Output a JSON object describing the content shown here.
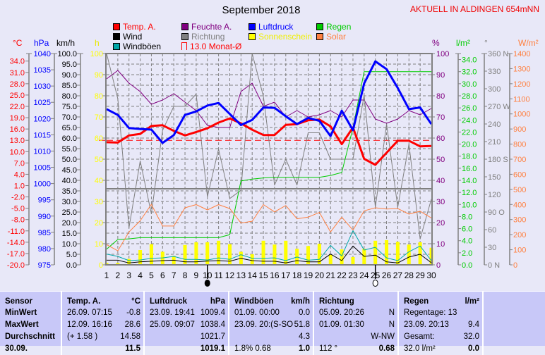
{
  "title": "September 2018",
  "location": "AKTUELL IN ALDINGEN 654mNN",
  "legend": [
    {
      "label": "Temp. A.",
      "color": "#FF0000"
    },
    {
      "label": "Wind",
      "color": "#000000"
    },
    {
      "label": "Windböen",
      "color": "#00A8A8"
    },
    {
      "label": "Feuchte A.",
      "color": "#800080"
    },
    {
      "label": "Richtung",
      "color": "#808080"
    },
    {
      "label": "13.0 Monat-Ø",
      "color": "#FF0000"
    },
    {
      "label": "Luftdruck",
      "color": "#0000FF"
    },
    {
      "label": "Sonnenschein",
      "color": "#FFFF00"
    },
    {
      "label": "Regen",
      "color": "#00CC00"
    },
    {
      "label": "Solar",
      "color": "#FF8040"
    }
  ],
  "units": {
    "temp": "°C",
    "pressure": "hPa",
    "wind": "km/h",
    "sun": "h",
    "humidity": "%",
    "rain": "l/m²",
    "direction": "°",
    "solar": "W/m²"
  },
  "chart_data": {
    "type": "line",
    "title": "September 2018",
    "x": [
      1,
      2,
      3,
      4,
      5,
      6,
      7,
      8,
      9,
      10,
      11,
      12,
      13,
      14,
      15,
      16,
      17,
      18,
      19,
      20,
      21,
      22,
      23,
      24,
      25,
      26,
      27,
      28,
      29,
      30
    ],
    "xlabel": "Tag",
    "grid": true,
    "axes": {
      "temp": {
        "min": -20,
        "max": 36,
        "label_from": -20,
        "label_to": 34,
        "step": 3,
        "decimals": 1,
        "color": "#FF0000"
      },
      "pressure": {
        "min": 975,
        "max": 1040,
        "label_from": 975,
        "label_to": 1040,
        "step": 5,
        "decimals": 0,
        "color": "#0000FF"
      },
      "wind": {
        "min": 0,
        "max": 100,
        "label_from": 0,
        "label_to": 100,
        "step": 5,
        "decimals": 1,
        "color": "#000000"
      },
      "sun": {
        "min": 0,
        "max": 100,
        "label_from": 0,
        "label_to": 100,
        "step": 10,
        "decimals": 0,
        "color": "#FFFF00"
      },
      "humidity": {
        "min": 0,
        "max": 100,
        "label_from": 0,
        "label_to": 100,
        "step": 10,
        "decimals": 0,
        "color": "#800080"
      },
      "rain": {
        "min": 0,
        "max": 35,
        "label_from": 0,
        "label_to": 34,
        "step": 2,
        "decimals": 1,
        "color": "#00CC00"
      },
      "direction": {
        "min": 0,
        "max": 360,
        "label_from": 0,
        "label_to": 360,
        "step": 30,
        "decimals": 0,
        "color": "#808080",
        "compass": {
          "0": "N",
          "90": "O",
          "180": "S",
          "270": "W",
          "360": "N"
        }
      },
      "solar": {
        "min": 0,
        "max": 1400,
        "label_from": 0,
        "label_to": 1400,
        "step": 100,
        "decimals": 0,
        "color": "#FF8040"
      }
    },
    "monthly_avg_temp": 13.0,
    "moon_phases": [
      {
        "day": 10,
        "phase": "new"
      },
      {
        "day": 25,
        "phase": "full"
      }
    ],
    "series": [
      {
        "name": "Temp. A.",
        "axis": "temp",
        "color": "#FF0000",
        "width": 3,
        "values": [
          12.5,
          12.4,
          14.3,
          14.7,
          16.8,
          17.0,
          15.5,
          14.3,
          15.2,
          16.2,
          17.7,
          18.8,
          17.5,
          15.8,
          14.4,
          14.4,
          17.1,
          17.3,
          18.3,
          18.5,
          16.7,
          12.0,
          16.4,
          8.1,
          6.5,
          9.7,
          12.9,
          12.9,
          11.4,
          11.5
        ]
      },
      {
        "name": "Luftdruck",
        "axis": "pressure",
        "color": "#0000FF",
        "width": 3,
        "values": [
          1022.9,
          1021.1,
          1017.1,
          1016.8,
          1016.6,
          1012.5,
          1014.9,
          1021.1,
          1022.2,
          1024.0,
          1024.8,
          1021.4,
          1018.0,
          1019.6,
          1023.4,
          1023.3,
          1020.7,
          1018.3,
          1020.2,
          1019.3,
          1014.6,
          1022.4,
          1016.4,
          1030.8,
          1037.6,
          1035.2,
          1029.4,
          1022.9,
          1023.4,
          1018.3
        ]
      },
      {
        "name": "Feuchte A.",
        "axis": "humidity",
        "color": "#800080",
        "width": 1,
        "values": [
          88,
          92,
          86,
          82,
          76,
          78,
          81,
          77,
          73,
          66,
          65,
          65,
          82,
          86,
          75,
          77,
          70,
          73,
          70,
          71,
          73,
          70,
          78,
          78,
          69,
          67,
          69,
          73,
          71,
          74
        ]
      },
      {
        "name": "Richtung",
        "axis": "direction",
        "color": "#808080",
        "width": 1,
        "values": [
          360,
          283,
          63,
          177,
          87,
          229,
          270,
          270,
          291,
          116,
          197,
          113,
          127,
          360,
          287,
          136,
          180,
          136,
          225,
          225,
          180,
          180,
          180,
          289,
          98,
          240,
          98,
          206,
          44,
          112
        ]
      },
      {
        "name": "Regen",
        "axis": "rain",
        "color": "#00CC00",
        "width": 1,
        "values": [
          2.6,
          4.2,
          4.3,
          4.5,
          4.5,
          4.5,
          4.5,
          4.5,
          4.5,
          4.5,
          4.5,
          5.0,
          13.9,
          14.2,
          14.4,
          14.5,
          14.5,
          14.5,
          14.5,
          14.5,
          14.8,
          15.3,
          22.7,
          32.0,
          32.0,
          32.0,
          32.0,
          32.0,
          32.0,
          32.0
        ]
      },
      {
        "name": "Solar",
        "axis": "solar",
        "color": "#FF8040",
        "width": 1,
        "values": [
          134,
          93,
          218,
          292,
          401,
          257,
          257,
          378,
          399,
          364,
          399,
          373,
          277,
          289,
          399,
          351,
          393,
          305,
          316,
          347,
          218,
          316,
          230,
          358,
          378,
          370,
          373,
          336,
          355,
          311
        ]
      },
      {
        "name": "Windböen",
        "axis": "wind",
        "color": "#00A8A8",
        "width": 1,
        "values": [
          5.1,
          4.0,
          2.0,
          2.3,
          3.1,
          3.3,
          4.0,
          2.6,
          2.6,
          2.3,
          3.3,
          2.6,
          4.8,
          3.1,
          3.1,
          3.3,
          2.0,
          3.7,
          2.2,
          2.6,
          9.2,
          4.2,
          16.2,
          7.0,
          8.3,
          3.3,
          2.0,
          6.2,
          8.9,
          2.0
        ]
      },
      {
        "name": "Wind",
        "axis": "wind",
        "color": "#000000",
        "width": 1,
        "values": [
          2.2,
          2.2,
          0.9,
          1.4,
          1.7,
          2.0,
          2.2,
          1.4,
          1.4,
          1.8,
          2.0,
          1.7,
          3.1,
          2.0,
          1.7,
          1.7,
          0.9,
          2.0,
          1.4,
          1.4,
          5.1,
          2.0,
          8.9,
          4.0,
          4.6,
          1.4,
          0.9,
          3.7,
          5.0,
          1.0
        ]
      }
    ],
    "bars": {
      "name": "Sonnenschein",
      "axis": "sun",
      "color": "#FFFF00",
      "values": [
        0.9,
        0.9,
        2.8,
        7.0,
        9.8,
        6.2,
        4.2,
        9.4,
        10.7,
        10.7,
        11.4,
        9.8,
        6.2,
        5.0,
        11.4,
        9.6,
        11.4,
        7.6,
        8.9,
        10.0,
        4.8,
        7.3,
        3.7,
        7.6,
        11.4,
        11.7,
        10.9,
        9.6,
        10.7,
        8.1
      ]
    }
  },
  "table": {
    "columns": [
      {
        "cells": [
          [
            "Sensor",
            ""
          ],
          [
            "MinWert",
            ""
          ],
          [
            "MaxWert",
            ""
          ],
          [
            "Durchschnitt",
            ""
          ],
          [
            "30.09.",
            ""
          ]
        ],
        "bold": true
      },
      {
        "cells": [
          [
            "Temp. A.",
            "°C"
          ],
          [
            "26.09.  07:15",
            "-0.8"
          ],
          [
            "12.09.  16:16",
            "28.6"
          ],
          [
            "(+ 1.58 )",
            "14.58"
          ],
          [
            "",
            "11.5"
          ]
        ]
      },
      {
        "cells": [
          [
            "Luftdruck",
            "hPa"
          ],
          [
            "23.09.  19:41",
            "1009.4"
          ],
          [
            "25.09.  09:07",
            "1038.4"
          ],
          [
            "",
            "1021.7"
          ],
          [
            "",
            "1019.1"
          ]
        ]
      },
      {
        "cells": [
          [
            "Windböen",
            "km/h"
          ],
          [
            "01.09.  00:00",
            "0.0"
          ],
          [
            "23.09.  20:(S-SO",
            "51.8"
          ],
          [
            "",
            "4.3"
          ],
          [
            "1.8% 0.68",
            "1.0"
          ]
        ]
      },
      {
        "cells": [
          [
            "Richtung",
            ""
          ],
          [
            "05.09.  20:26",
            "N"
          ],
          [
            "01.09.  01:30",
            "N"
          ],
          [
            "",
            "W-NW"
          ],
          [
            "112 °",
            "0.68"
          ]
        ]
      },
      {
        "cells": [
          [
            "Regen",
            "l/m²"
          ],
          [
            "Regentage: 13",
            ""
          ],
          [
            "23.09.  20:13",
            "9.4"
          ],
          [
            "Gesamt:",
            "32.0"
          ],
          [
            "32.0 l/m²",
            "0.0"
          ]
        ]
      },
      {
        "cells": [
          [
            "",
            ""
          ],
          [
            "",
            ""
          ],
          [
            "",
            ""
          ],
          [
            "",
            ""
          ],
          [
            "",
            ""
          ]
        ]
      }
    ]
  }
}
